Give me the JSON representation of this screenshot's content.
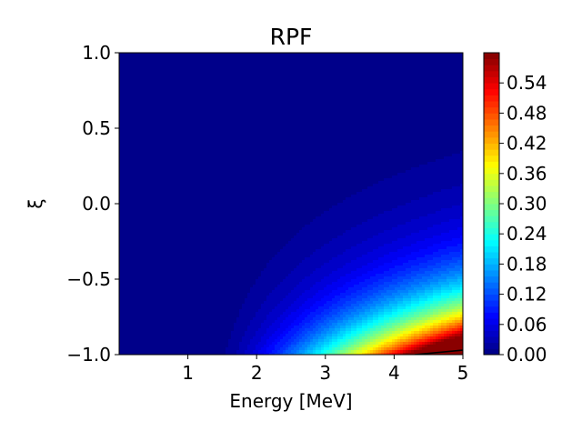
{
  "chart_data": {
    "type": "heatmap",
    "title": "RPF",
    "xlabel": "Energy [MeV]",
    "ylabel": "ξ",
    "xlim": [
      0,
      5
    ],
    "ylim": [
      -1.0,
      1.0
    ],
    "x_ticks": [
      1,
      2,
      3,
      4,
      5
    ],
    "x_tick_labels": [
      "1",
      "2",
      "3",
      "4",
      "5"
    ],
    "y_ticks": [
      -1.0,
      -0.5,
      0.0,
      0.5,
      1.0
    ],
    "y_tick_labels": [
      "−1.0",
      "−0.5",
      "0.0",
      "0.5",
      "1.0"
    ],
    "colormap": "jet",
    "colorbar": {
      "min": 0.0,
      "max": 0.6,
      "levels": 50,
      "ticks": [
        0.0,
        0.06,
        0.12,
        0.18,
        0.24,
        0.3,
        0.36,
        0.42,
        0.48,
        0.54
      ],
      "tick_labels": [
        "0.00",
        "0.06",
        "0.12",
        "0.18",
        "0.24",
        "0.30",
        "0.36",
        "0.42",
        "0.48",
        "0.54"
      ]
    },
    "grid": false,
    "contour_line": {
      "level": 0.54,
      "color": "#000000",
      "points": [
        [
          4.3,
          -1.0
        ],
        [
          5.0,
          -0.97
        ]
      ]
    },
    "field_samples": [
      {
        "x": 1.2,
        "y": -1.0,
        "value": 0.0
      },
      {
        "x": 2.0,
        "y": -1.0,
        "value": 0.12
      },
      {
        "x": 3.0,
        "y": -1.0,
        "value": 0.3
      },
      {
        "x": 4.0,
        "y": -1.0,
        "value": 0.48
      },
      {
        "x": 5.0,
        "y": -1.0,
        "value": 0.58
      },
      {
        "x": 5.0,
        "y": -0.8,
        "value": 0.3
      },
      {
        "x": 5.0,
        "y": -0.5,
        "value": 0.1
      },
      {
        "x": 5.0,
        "y": -0.1,
        "value": 0.0
      },
      {
        "x": 3.0,
        "y": -0.5,
        "value": 0.04
      }
    ]
  }
}
